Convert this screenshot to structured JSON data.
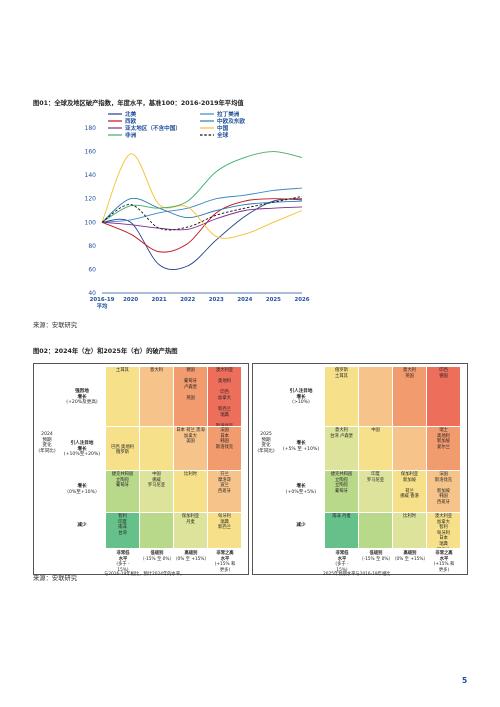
{
  "fig1": {
    "title": "图01：全球及地区破产指数，年度水平，基准100：2016-2019年平均值",
    "source": "来源：安联研究"
  },
  "fig2": {
    "title": "图02：2024年（左）和2025年（右）的破产热图",
    "source": "来源：安联研究"
  },
  "chart_data": {
    "type": "line",
    "categories": [
      "2016-19\n平均",
      "2020",
      "2021",
      "2022",
      "2023",
      "2024",
      "2025",
      "2026"
    ],
    "ylim": [
      40,
      180
    ],
    "yticks": [
      40,
      60,
      80,
      100,
      120,
      140,
      160,
      180
    ],
    "grid": false,
    "legend": "top",
    "series": [
      {
        "name": "北美",
        "color": "#1f3e8f",
        "dash": false,
        "values": [
          100,
          100,
          64,
          63,
          85,
          105,
          118,
          120
        ]
      },
      {
        "name": "拉丁美洲",
        "color": "#3b88c9",
        "dash": false,
        "values": [
          100,
          102,
          108,
          112,
          120,
          123,
          127,
          129
        ]
      },
      {
        "name": "西欧",
        "color": "#c0121b",
        "dash": false,
        "values": [
          100,
          90,
          75,
          82,
          108,
          118,
          120,
          119
        ]
      },
      {
        "name": "中欧及东欧",
        "color": "#2a7ab5",
        "dash": false,
        "values": [
          100,
          120,
          112,
          104,
          110,
          115,
          117,
          118
        ]
      },
      {
        "name": "亚太地区（不含中国）",
        "color": "#7b2d8b",
        "dash": false,
        "values": [
          100,
          98,
          95,
          94,
          103,
          110,
          112,
          113
        ]
      },
      {
        "name": "中国",
        "color": "#f2c12e",
        "dash": false,
        "values": [
          100,
          158,
          115,
          113,
          88,
          90,
          100,
          110
        ]
      },
      {
        "name": "非洲",
        "color": "#3fae6a",
        "dash": false,
        "values": [
          100,
          114,
          112,
          118,
          143,
          155,
          160,
          155
        ]
      },
      {
        "name": "全球",
        "color": "#111111",
        "dash": true,
        "values": [
          100,
          115,
          95,
          96,
          106,
          112,
          117,
          122
        ]
      }
    ]
  },
  "heat2024": {
    "row_title_top": "2024\n预期\n变化\n(年同比)",
    "rows": [
      {
        "label": "强烈地\n增长",
        "sub": "(+20%及更高)"
      },
      {
        "label": "引人注目地\n增长",
        "sub": "(+10%至+20%)"
      },
      {
        "label": "增长",
        "sub": "（0%至+10%）"
      },
      {
        "label": "减少",
        "sub": ""
      }
    ],
    "cols": [
      {
        "label": "非常低\n水平",
        "sub": "(多于 -\n15%)"
      },
      {
        "label": "低级别",
        "sub": "（-15% 至 0%）"
      },
      {
        "label": "高级别",
        "sub": "（0% 至 +15%）"
      },
      {
        "label": "非常之高\n水平",
        "sub": "(+15% 和\n更多)"
      }
    ],
    "cells": [
      [
        "土耳其",
        "意大利",
        "德国\n\n葡萄牙\n卢森堡\n\n英国",
        "澳大利亚\n\n奥地利\n\n印西\n加拿大\n\n新西兰\n瑞典\n\n斯洛伐克\n\n瑞典"
      ],
      [
        "\n\n\n巴西 奥地利\n俄罗斯",
        "",
        "日本 荷兰 黑海\n加拿大\n美国",
        "法国\n日本\n韩国\n斯洛伐克"
      ],
      [
        "捷克共和国\n立陶宛\n葡萄牙",
        "中国\n挪威\n罗马尼亚",
        "比利时",
        "芬兰\n摩洛哥\n波兰\n西班牙"
      ],
      [
        "智利\n印度\n南非\n台湾",
        "",
        "保加利亚\n丹麦",
        "匈牙利\n瑞典\n新西兰"
      ]
    ],
    "footnote": "与2016-19年相比，预计2024年的水平。"
  },
  "heat2025": {
    "row_title_top": "2025\n预期\n变化\n(年同比)",
    "rows": [
      {
        "label": "引人注目地\n增长",
        "sub": "(>10%)"
      },
      {
        "label": "增长",
        "sub": "(+5% 至 +10%)"
      },
      {
        "label": "增长",
        "sub": "(+0%至+5%)"
      },
      {
        "label": "减少",
        "sub": ""
      }
    ],
    "cols": [
      {
        "label": "非常低\n水平",
        "sub": "(多于 -\n15%)"
      },
      {
        "label": "低级别",
        "sub": "（-15% 至 0%）"
      },
      {
        "label": "高级别",
        "sub": "（0% 至 +15%）"
      },
      {
        "label": "非常之高\n水平",
        "sub": "(+15% 和\n更多)"
      }
    ],
    "cells": [
      [
        "俄罗斯\n土耳其",
        "",
        "意大利\n英国",
        "印西\n德国"
      ],
      [
        "意大利\n台湾 卢森堡",
        "中国",
        "",
        "瑞士\n奥地利\n新加坡\n爱尔兰"
      ],
      [
        "捷克共和国\n立陶宛\n立陶宛\n葡萄牙",
        "印度\n罗马尼亚",
        "保加利亚\n新加坡\n\n荷兰\n挪威 香港",
        "法国\n斯洛伐克\n\n新加坡\n韩国\n西班牙"
      ],
      [
        "南非 丹麦",
        "",
        "比利时",
        "澳大利亚\n加拿大\n智利\n匈牙利\n日本\n瑞典\n新西兰\n美国"
      ]
    ],
    "footnote": "2025年预期水平与2016-19年相比"
  },
  "page": {
    "number": "5"
  }
}
